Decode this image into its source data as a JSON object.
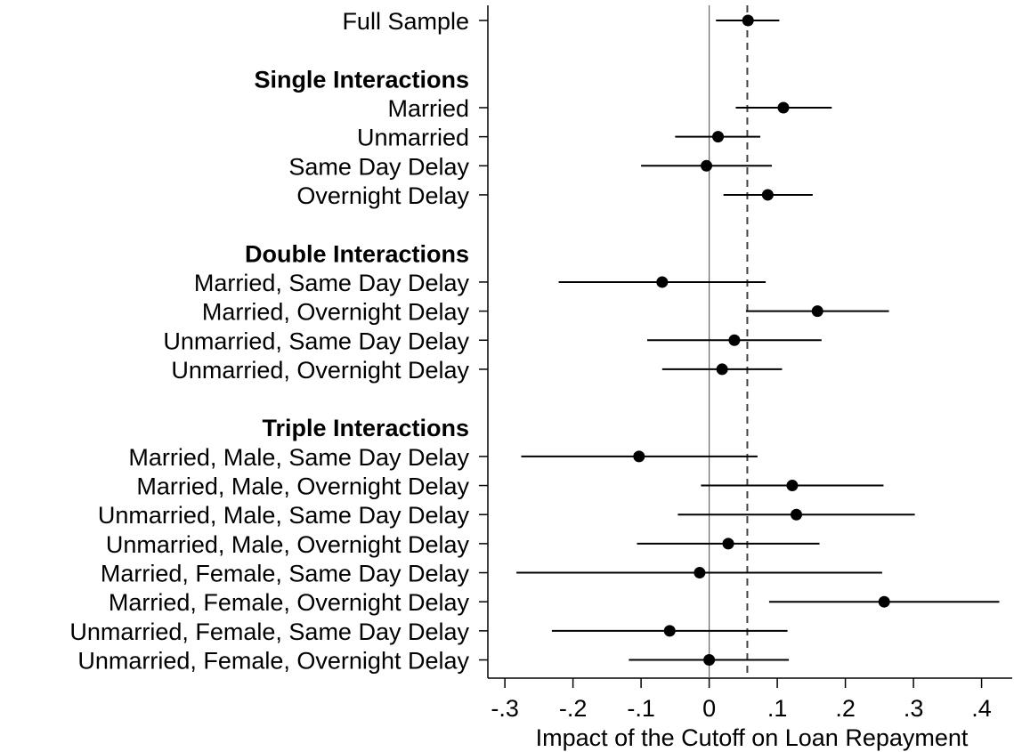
{
  "chart_data": {
    "type": "scatter",
    "subtype": "coefficient-plot-with-confidence-intervals",
    "orientation": "horizontal",
    "xlabel": "Impact of the Cutoff on Loan Repayment",
    "x_ticks": [
      -0.3,
      -0.2,
      -0.1,
      0,
      0.1,
      0.2,
      0.3,
      0.4
    ],
    "x_tick_labels": [
      "-.3",
      "-.2",
      "-.1",
      "0",
      ".1",
      ".2",
      ".3",
      ".4"
    ],
    "xlim": [
      -0.325,
      0.445
    ],
    "reference_lines": [
      {
        "x": 0,
        "style": "solid"
      },
      {
        "x": 0.056,
        "style": "dashed"
      }
    ],
    "grid": false,
    "legend": "none",
    "rows": [
      {
        "kind": "item",
        "label": "Full Sample",
        "estimate": 0.057,
        "ci": [
          0.01,
          0.103
        ]
      },
      {
        "kind": "gap"
      },
      {
        "kind": "header",
        "label": "Single Interactions"
      },
      {
        "kind": "item",
        "label": "Married",
        "estimate": 0.109,
        "ci": [
          0.039,
          0.18
        ]
      },
      {
        "kind": "item",
        "label": "Unmarried",
        "estimate": 0.013,
        "ci": [
          -0.05,
          0.075
        ]
      },
      {
        "kind": "item",
        "label": "Same Day Delay",
        "estimate": -0.004,
        "ci": [
          -0.1,
          0.092
        ]
      },
      {
        "kind": "item",
        "label": "Overnight Delay",
        "estimate": 0.086,
        "ci": [
          0.021,
          0.152
        ]
      },
      {
        "kind": "gap"
      },
      {
        "kind": "header",
        "label": "Double Interactions"
      },
      {
        "kind": "item",
        "label": "Married, Same Day Delay",
        "estimate": -0.069,
        "ci": [
          -0.221,
          0.083
        ]
      },
      {
        "kind": "item",
        "label": "Married, Overnight Delay",
        "estimate": 0.159,
        "ci": [
          0.054,
          0.264
        ]
      },
      {
        "kind": "item",
        "label": "Unmarried, Same Day Delay",
        "estimate": 0.037,
        "ci": [
          -0.091,
          0.165
        ]
      },
      {
        "kind": "item",
        "label": "Unmarried, Overnight Delay",
        "estimate": 0.019,
        "ci": [
          -0.069,
          0.107
        ]
      },
      {
        "kind": "gap"
      },
      {
        "kind": "header",
        "label": "Triple Interactions"
      },
      {
        "kind": "item",
        "label": "Married, Male, Same Day Delay",
        "estimate": -0.103,
        "ci": [
          -0.276,
          0.071
        ]
      },
      {
        "kind": "item",
        "label": "Married, Male, Overnight Delay",
        "estimate": 0.122,
        "ci": [
          -0.012,
          0.256
        ]
      },
      {
        "kind": "item",
        "label": "Unmarried, Male, Same Day Delay",
        "estimate": 0.128,
        "ci": [
          -0.046,
          0.302
        ]
      },
      {
        "kind": "item",
        "label": "Unmarried, Male, Overnight Delay",
        "estimate": 0.028,
        "ci": [
          -0.106,
          0.162
        ]
      },
      {
        "kind": "item",
        "label": "Married, Female, Same Day Delay",
        "estimate": -0.014,
        "ci": [
          -0.283,
          0.254
        ]
      },
      {
        "kind": "item",
        "label": "Married, Female, Overnight Delay",
        "estimate": 0.257,
        "ci": [
          0.088,
          0.426
        ]
      },
      {
        "kind": "item",
        "label": "Unmarried, Female, Same Day Delay",
        "estimate": -0.058,
        "ci": [
          -0.231,
          0.115
        ]
      },
      {
        "kind": "item",
        "label": "Unmarried, Female, Overnight Delay",
        "estimate": 0,
        "ci": [
          -0.118,
          0.117
        ]
      }
    ]
  }
}
